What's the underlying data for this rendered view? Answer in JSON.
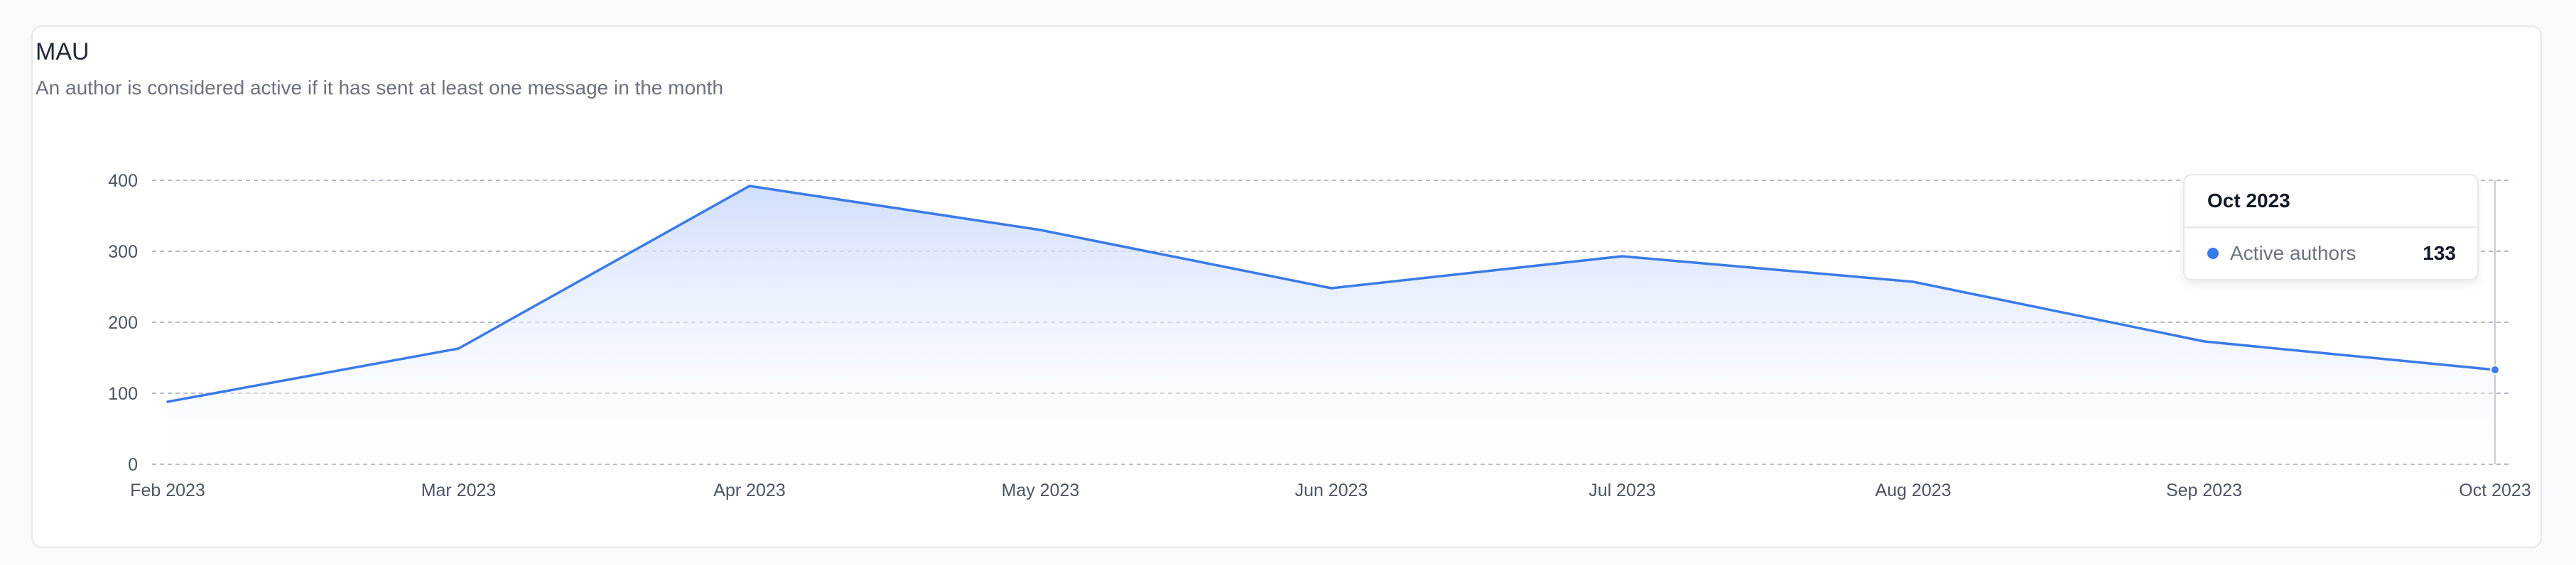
{
  "card": {
    "title": "MAU",
    "subtitle": "An author is considered active if it has sent at least one message in the month"
  },
  "colors": {
    "line": "#3b7be8",
    "area_top": "#c9d9fb",
    "grid": "#b6bcc6",
    "cursor": "#c7ccd3"
  },
  "chart_data": {
    "type": "area",
    "categories": [
      "Feb 2023",
      "Mar 2023",
      "Apr 2023",
      "May 2023",
      "Jun 2023",
      "Jul 2023",
      "Aug 2023",
      "Sep 2023",
      "Oct 2023"
    ],
    "series": [
      {
        "name": "Active authors",
        "values": [
          88,
          163,
          392,
          330,
          248,
          293,
          257,
          173,
          133
        ]
      }
    ],
    "y_ticks": [
      0,
      100,
      200,
      300,
      400
    ],
    "ylim": [
      0,
      400
    ],
    "grid": "horizontal dashed",
    "legend": "none"
  },
  "tooltip": {
    "title": "Oct 2023",
    "series_label": "Active authors",
    "value": "133"
  }
}
